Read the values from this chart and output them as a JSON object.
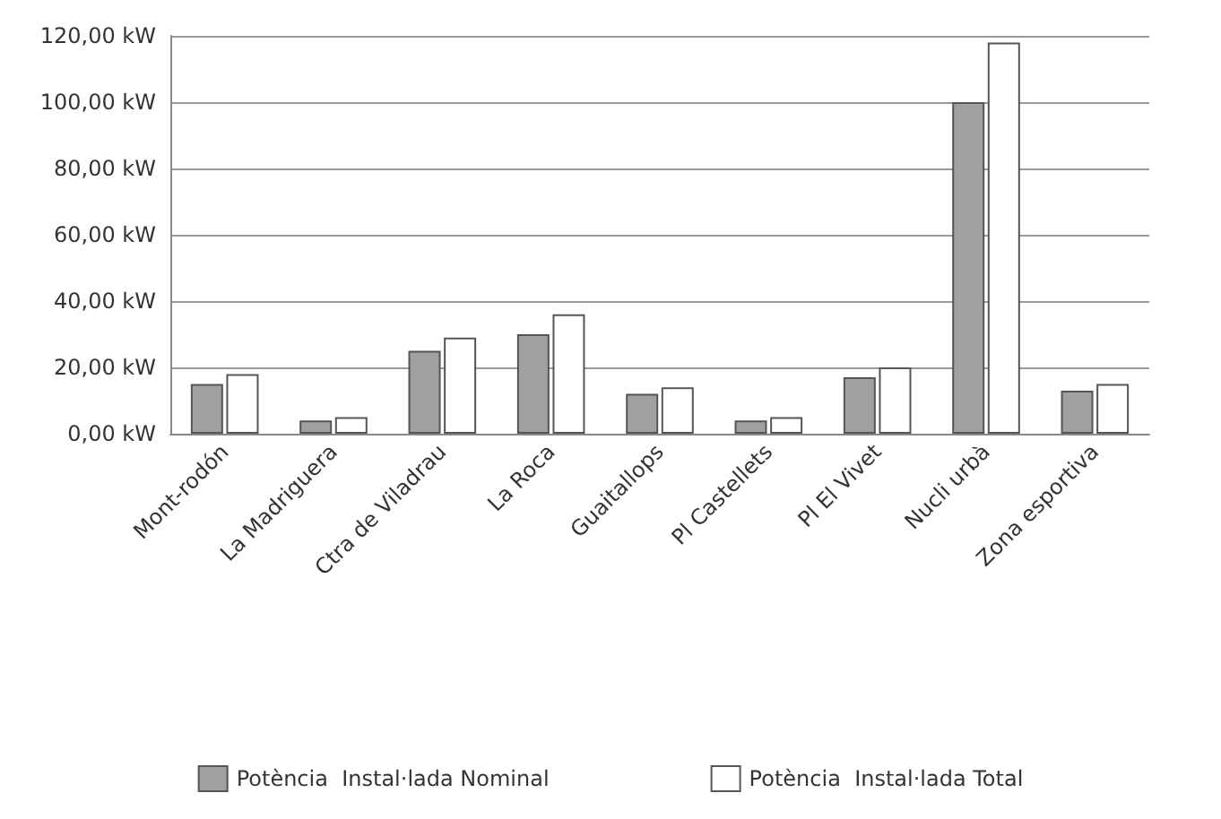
{
  "chart_data": {
    "type": "bar",
    "categories": [
      "Mont-rodón",
      "La Madriguera",
      "Ctra de Viladrau",
      "La Roca",
      "Guaitallops",
      "Pl Castellets",
      "Pl El Vivet",
      "Nucli urbà",
      "Zona esportiva"
    ],
    "series": [
      {
        "name": "Potència  Instal·lada Nominal",
        "color": "#a0a0a0",
        "values": [
          15,
          4,
          25,
          30,
          12,
          4,
          17,
          100,
          13
        ]
      },
      {
        "name": "Potència  Instal·lada Total",
        "color": "#ffffff",
        "values": [
          18,
          5,
          29,
          36,
          14,
          5,
          20,
          118,
          15
        ]
      }
    ],
    "ylim": [
      0,
      120
    ],
    "yticks": [
      {
        "value": 0,
        "label": "0,00 kW"
      },
      {
        "value": 20,
        "label": "20,00 kW"
      },
      {
        "value": 40,
        "label": "40,00 kW"
      },
      {
        "value": 60,
        "label": "60,00 kW"
      },
      {
        "value": 80,
        "label": "80,00 kW"
      },
      {
        "value": 100,
        "label": "100,00 kW"
      },
      {
        "value": 120,
        "label": "120,00 kW"
      }
    ],
    "grid": true,
    "legend": "bottom"
  }
}
